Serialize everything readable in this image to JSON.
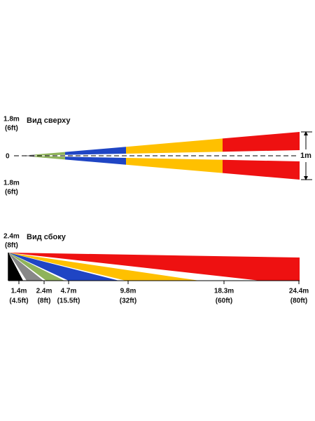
{
  "top_view": {
    "title": "Вид сверху",
    "upper_label": {
      "metric": "1.8m",
      "imperial": "(6ft)"
    },
    "origin_label": "0",
    "lower_label": {
      "metric": "1.8m",
      "imperial": "(6ft)"
    },
    "width_label": "1m"
  },
  "side_view": {
    "title": "Вид сбоку",
    "height_label": {
      "metric": "2.4m",
      "imperial": "(8ft)"
    },
    "distances": [
      {
        "metric": "1.4m",
        "imperial": "(4.5ft)"
      },
      {
        "metric": "2.4m",
        "imperial": "(8ft)"
      },
      {
        "metric": "4.7m",
        "imperial": "(15.5ft)"
      },
      {
        "metric": "9.8m",
        "imperial": "(32ft)"
      },
      {
        "metric": "18.3m",
        "imperial": "(60ft)"
      },
      {
        "metric": "24.4m",
        "imperial": "(80ft)"
      }
    ]
  }
}
